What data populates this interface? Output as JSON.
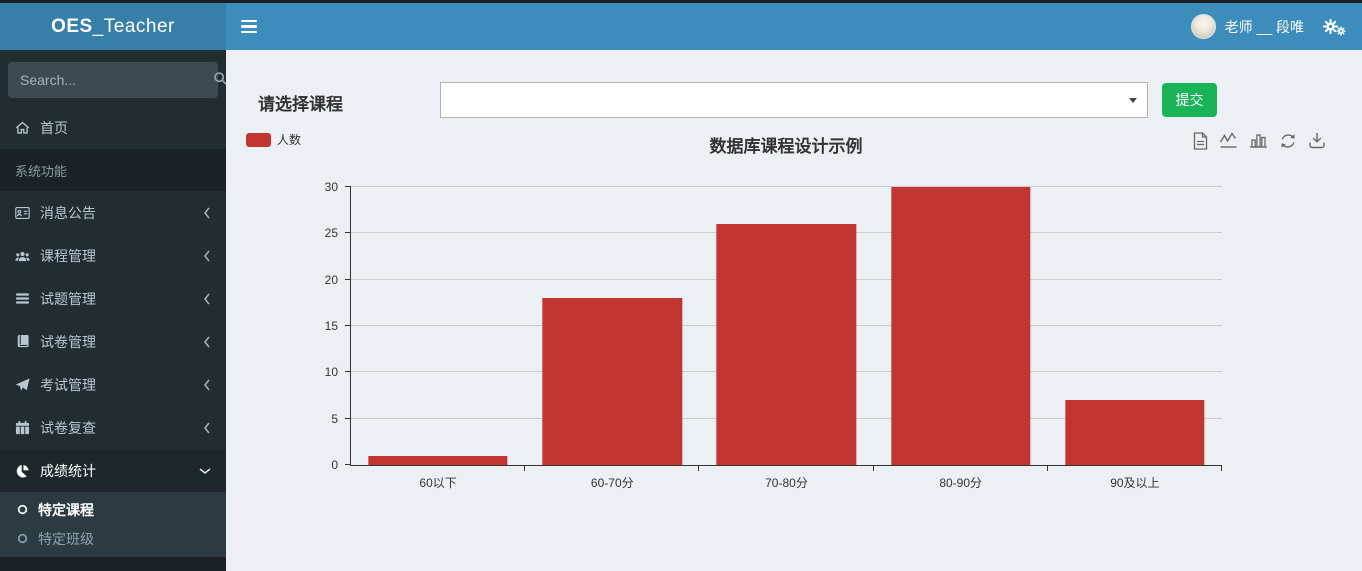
{
  "header": {
    "brand_bold": "OES",
    "brand_rest": "_Teacher",
    "user_name": "老师 __ 段唯"
  },
  "sidebar": {
    "search_placeholder": "Search...",
    "home_label": "首页",
    "section_label": "系统功能",
    "items": [
      {
        "label": "消息公告",
        "icon": "address-card-icon"
      },
      {
        "label": "课程管理",
        "icon": "users-icon"
      },
      {
        "label": "试题管理",
        "icon": "list-icon"
      },
      {
        "label": "试卷管理",
        "icon": "book-icon"
      },
      {
        "label": "考试管理",
        "icon": "paper-plane-icon"
      },
      {
        "label": "试卷复查",
        "icon": "calendar-icon"
      },
      {
        "label": "成绩统计",
        "icon": "pie-chart-icon",
        "expanded": true
      }
    ],
    "submenu": [
      {
        "label": "特定课程",
        "active": true
      },
      {
        "label": "特定班级",
        "active": false
      }
    ]
  },
  "main": {
    "course_select_label": "请选择课程",
    "course_select_value": "",
    "submit_label": "提交"
  },
  "chart_data": {
    "type": "bar",
    "title": "数据库课程设计示例",
    "legend": [
      "人数"
    ],
    "legend_position": "top-left",
    "categories": [
      "60以下",
      "60-70分",
      "70-80分",
      "80-90分",
      "90及以上"
    ],
    "values": [
      1,
      18,
      26,
      30,
      7
    ],
    "ylim": [
      0,
      30
    ],
    "ytick_interval": 5,
    "bar_color": "#c23531",
    "grid": true,
    "toolbox": [
      "data-view",
      "switch-to-line-chart",
      "switch-to-bar-chart",
      "restore",
      "save-as-image"
    ]
  },
  "colors": {
    "navbar": "#3c8dbc",
    "logo_bg": "#367fa9",
    "sidebar_bg": "#222d32",
    "submenu_bg": "#2c3b41",
    "content_bg": "#ecf0f5",
    "submit_button": "#19b459",
    "bar_red": "#c23531"
  }
}
